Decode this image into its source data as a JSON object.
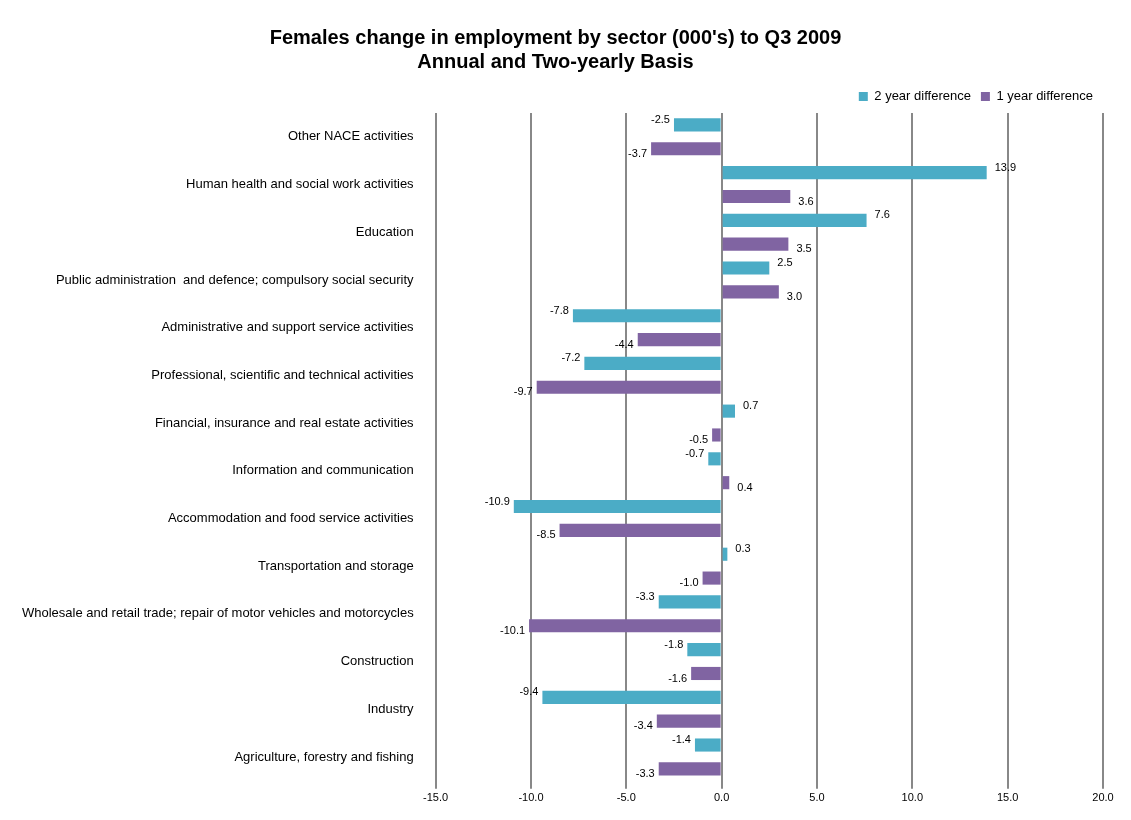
{
  "chart_data": {
    "type": "bar",
    "orientation": "horizontal",
    "title": [
      "Females change in employment by sector (000's) to Q3 2009",
      "Annual and Two-yearly Basis"
    ],
    "categories": [
      "Other NACE activities",
      "Human health and social work activities",
      "Education",
      "Public administration  and defence; compulsory social security",
      "Administrative and support service activities",
      "Professional, scientific and technical activities",
      "Financial, insurance and real estate activities",
      "Information and communication",
      "Accommodation and food service activities",
      "Transportation and storage",
      "Wholesale and retail trade; repair of motor vehicles and motorcycles",
      "Construction",
      "Industry",
      "Agriculture, forestry and fishing"
    ],
    "series": [
      {
        "name": "2 year difference",
        "color": "#4bacc6",
        "values": [
          -2.5,
          13.9,
          7.6,
          2.5,
          -7.8,
          -7.2,
          0.7,
          -0.7,
          -10.9,
          0.3,
          -3.3,
          -1.8,
          -9.4,
          -1.4
        ],
        "value_labels": [
          "-2.5",
          "13.9",
          "7.6",
          "2.5",
          "-7.8",
          "-7.2",
          "0.7",
          "-0.7",
          "-10.9",
          "0.3",
          "-3.3",
          "-1.8",
          "-9.4",
          "-1.4"
        ]
      },
      {
        "name": "1 year difference",
        "color": "#8064a2",
        "values": [
          -3.7,
          3.6,
          3.5,
          3.0,
          -4.4,
          -9.7,
          -0.5,
          0.4,
          -8.5,
          -1.0,
          -10.1,
          -1.6,
          -3.4,
          -3.3
        ],
        "value_labels": [
          "-3.7",
          "3.6",
          "3.5",
          "3.0",
          "-4.4",
          "-9.7",
          "-0.5",
          "0.4",
          "-8.5",
          "-1.0",
          "-10.1",
          "-1.6",
          "-3.4",
          "-3.3"
        ]
      }
    ],
    "xlim": [
      -15,
      20
    ],
    "xticks": [
      {
        "value": -15,
        "label": "-15.0"
      },
      {
        "value": -10,
        "label": "-10.0"
      },
      {
        "value": -5,
        "label": "-5.0"
      },
      {
        "value": 0,
        "label": "0.0"
      },
      {
        "value": 5,
        "label": "5.0"
      },
      {
        "value": 10,
        "label": "10.0"
      },
      {
        "value": 15,
        "label": "15.0"
      },
      {
        "value": 20,
        "label": "20.0"
      }
    ],
    "grid": "x",
    "legend": "top right"
  }
}
